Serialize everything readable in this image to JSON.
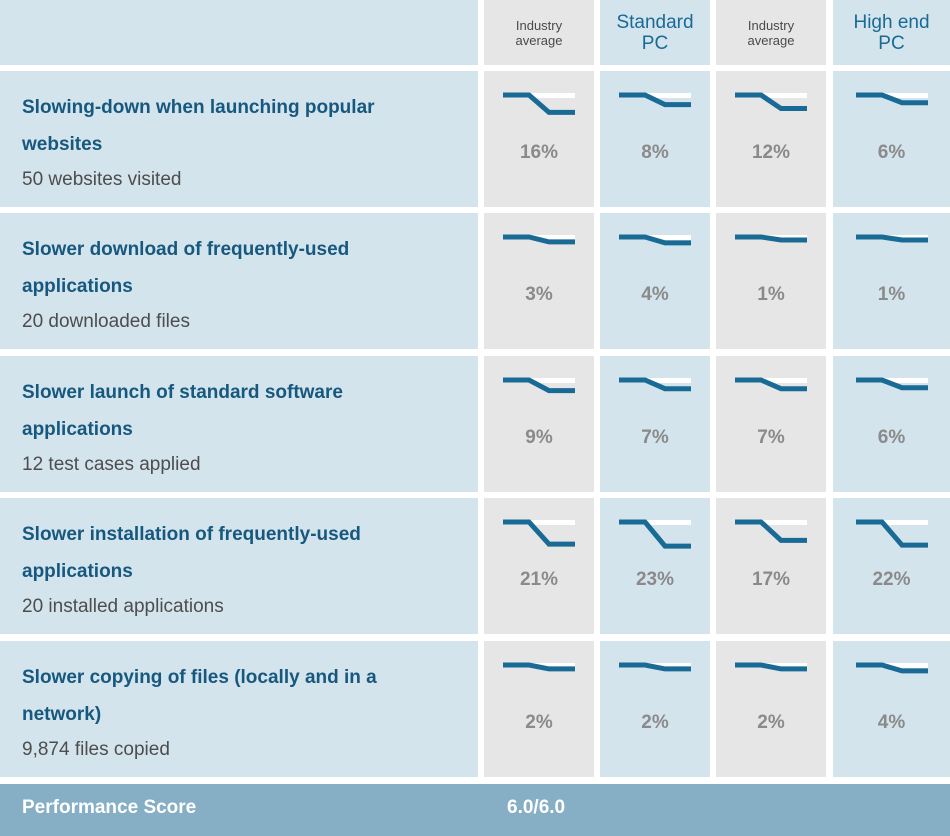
{
  "header": {
    "columns": [
      {
        "label_line1": "Industry",
        "label_line2": "average",
        "style": "small"
      },
      {
        "label_line1": "Standard",
        "label_line2": "PC",
        "style": "big"
      },
      {
        "label_line1": "Industry",
        "label_line2": "average",
        "style": "small"
      },
      {
        "label_line1": "High end",
        "label_line2": "PC",
        "style": "big"
      }
    ]
  },
  "rows": [
    {
      "title": "Slowing-down when launching popular websites",
      "subtitle": "50 websites visited",
      "values": [
        "16%",
        "8%",
        "12%",
        "6%"
      ]
    },
    {
      "title": "Slower download of frequently-used applications",
      "subtitle": "20 downloaded files",
      "values": [
        "3%",
        "4%",
        "1%",
        "1%"
      ]
    },
    {
      "title": "Slower launch of standard software applications",
      "subtitle": "12 test cases applied",
      "values": [
        "9%",
        "7%",
        "7%",
        "6%"
      ]
    },
    {
      "title": "Slower installation of frequently-used applications",
      "subtitle": "20 installed applications",
      "values": [
        "21%",
        "23%",
        "17%",
        "22%"
      ]
    },
    {
      "title": "Slower copying of files (locally and in a network)",
      "subtitle": "9,874 files copied",
      "values": [
        "2%",
        "2%",
        "2%",
        "4%"
      ]
    }
  ],
  "footer": {
    "label": "Performance Score",
    "value": "6.0/6.0"
  },
  "chart_data": {
    "type": "table",
    "columns": [
      "Industry average",
      "Standard PC",
      "Industry average",
      "High end PC"
    ],
    "categories": [
      "Slowing-down when launching popular websites",
      "Slower download of frequently-used applications",
      "Slower launch of standard software applications",
      "Slower installation of frequently-used applications",
      "Slower copying of files (locally and in a network)"
    ],
    "values": [
      [
        16,
        8,
        12,
        6
      ],
      [
        3,
        4,
        1,
        1
      ],
      [
        9,
        7,
        7,
        6
      ],
      [
        21,
        23,
        17,
        22
      ],
      [
        2,
        2,
        2,
        4
      ]
    ],
    "unit": "%"
  },
  "colors": {
    "line": "#1a6a96",
    "row_background": "#d4e4ed",
    "alt_column_background": "#e6e6e6",
    "footer_background": "#86afc5"
  }
}
